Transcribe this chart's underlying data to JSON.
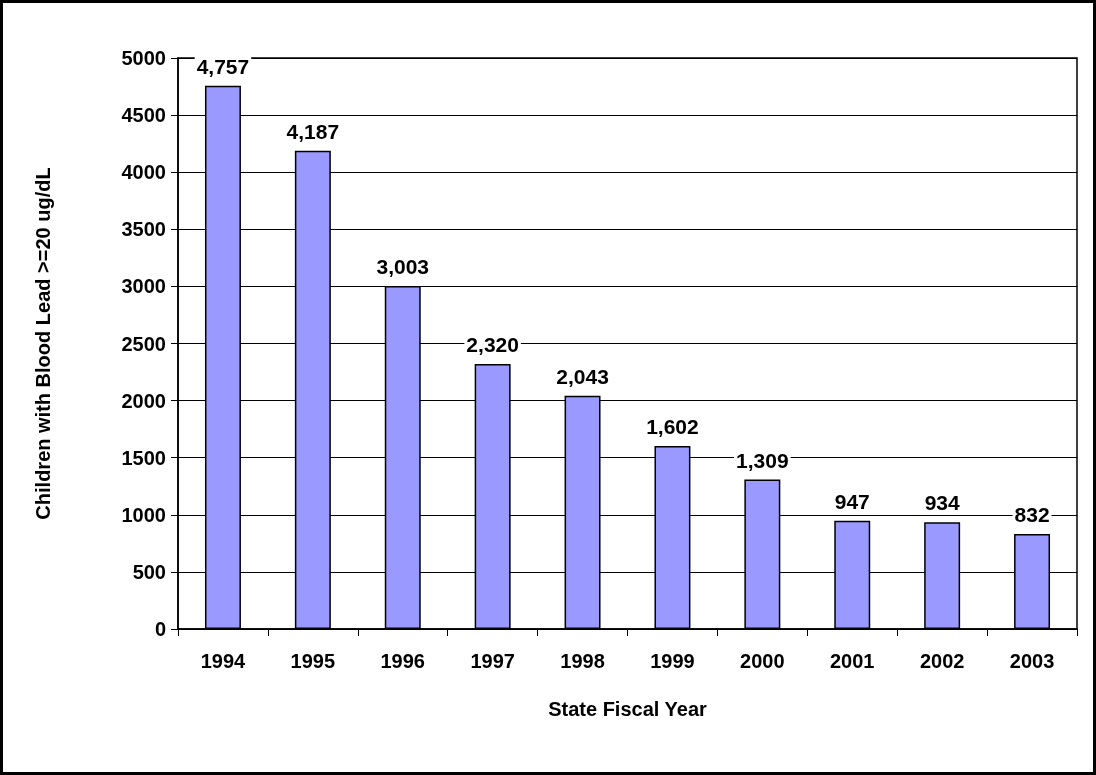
{
  "chart_data": {
    "type": "bar",
    "xlabel": "State Fiscal Year",
    "ylabel": "Children with Blood Lead >=20 ug/dL",
    "categories": [
      "1994",
      "1995",
      "1996",
      "1997",
      "1998",
      "1999",
      "2000",
      "2001",
      "2002",
      "2003"
    ],
    "values": [
      4757,
      4187,
      3003,
      2320,
      2043,
      1602,
      1309,
      947,
      934,
      832
    ],
    "value_labels": [
      "4,757",
      "4,187",
      "3,003",
      "2,320",
      "2,043",
      "1,602",
      "1,309",
      "947",
      "934",
      "832"
    ],
    "color": "#9999ff",
    "ylim": [
      0,
      5000
    ],
    "yticks": [
      0,
      500,
      1000,
      1500,
      2000,
      2500,
      3000,
      3500,
      4000,
      4500,
      5000
    ],
    "grid": "y"
  }
}
